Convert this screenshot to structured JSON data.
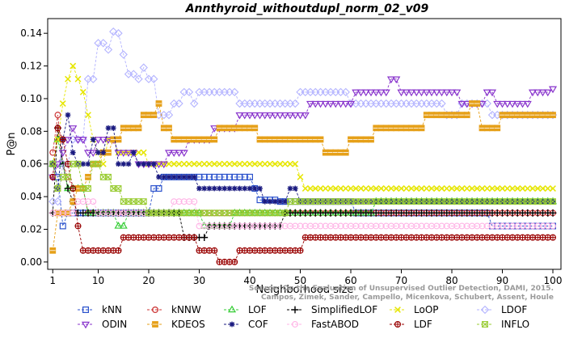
{
  "chart_data": {
    "type": "line",
    "title": "Annthyroid_withoutdupl_norm_02_v09",
    "xlabel": "Neighborhood size",
    "ylabel": "P@n",
    "xlim": [
      1,
      100
    ],
    "ylim": [
      0,
      0.15
    ],
    "xticks": [
      1,
      10,
      20,
      30,
      40,
      50,
      60,
      70,
      80,
      90,
      100
    ],
    "yticks": [
      0.0,
      0.02,
      0.04,
      0.06,
      0.08,
      0.1,
      0.12,
      0.14
    ],
    "ytick_labels": [
      "0.00",
      "0.02",
      "0.04",
      "0.06",
      "0.08",
      "0.10",
      "0.12",
      "0.14"
    ],
    "grid": false,
    "legend_position": "bottom",
    "watermark": [
      "Source: On the Evaluation of Unsupervised Outlier Detection, DAMI, 2015.",
      "Campos, Zimek, Sander, Campello, Micenkova, Schubert, Assent, Houle"
    ],
    "series": [
      {
        "name": "kNN",
        "color": "#2b52cc",
        "marker": "square",
        "points": [
          [
            1,
            0.06
          ],
          [
            2,
            0.052
          ],
          [
            3,
            0.022
          ],
          [
            4,
            0.03
          ],
          [
            7,
            0.03
          ],
          [
            10,
            0.03
          ],
          [
            20,
            0.03
          ],
          [
            21,
            0.045
          ],
          [
            22,
            0.045
          ],
          [
            23,
            0.052
          ],
          [
            40,
            0.052
          ],
          [
            41,
            0.045
          ],
          [
            42,
            0.038
          ],
          [
            44,
            0.038
          ],
          [
            46,
            0.037
          ],
          [
            60,
            0.037
          ],
          [
            61,
            0.03
          ],
          [
            87,
            0.03
          ],
          [
            88,
            0.022
          ],
          [
            100,
            0.022
          ]
        ]
      },
      {
        "name": "kNNW",
        "color": "#cc3333",
        "marker": "circle",
        "points": [
          [
            1,
            0.067
          ],
          [
            2,
            0.09
          ],
          [
            3,
            0.06
          ],
          [
            4,
            0.052
          ],
          [
            5,
            0.045
          ],
          [
            7,
            0.045
          ],
          [
            8,
            0.03
          ],
          [
            100,
            0.03
          ]
        ]
      },
      {
        "name": "LOF",
        "color": "#33cc33",
        "marker": "triangle-up",
        "points": [
          [
            1,
            0.06
          ],
          [
            2,
            0.075
          ],
          [
            3,
            0.06
          ],
          [
            4,
            0.045
          ],
          [
            8,
            0.03
          ],
          [
            12,
            0.03
          ],
          [
            14,
            0.022
          ],
          [
            16,
            0.03
          ],
          [
            30,
            0.03
          ],
          [
            31,
            0.022
          ],
          [
            36,
            0.022
          ],
          [
            37,
            0.03
          ],
          [
            64,
            0.03
          ],
          [
            65,
            0.037
          ],
          [
            100,
            0.037
          ]
        ]
      },
      {
        "name": "SimplifiedLOF",
        "color": "#000000",
        "marker": "plus",
        "points": [
          [
            1,
            0.03
          ],
          [
            2,
            0.082
          ],
          [
            3,
            0.06
          ],
          [
            4,
            0.045
          ],
          [
            5,
            0.037
          ],
          [
            6,
            0.03
          ],
          [
            26,
            0.03
          ],
          [
            27,
            0.015
          ],
          [
            31,
            0.015
          ],
          [
            32,
            0.022
          ],
          [
            46,
            0.022
          ],
          [
            47,
            0.03
          ],
          [
            100,
            0.03
          ]
        ]
      },
      {
        "name": "LoOP",
        "color": "#e6e600",
        "marker": "x",
        "points": [
          [
            1,
            0.06
          ],
          [
            2,
            0.075
          ],
          [
            3,
            0.097
          ],
          [
            4,
            0.112
          ],
          [
            5,
            0.12
          ],
          [
            6,
            0.112
          ],
          [
            7,
            0.104
          ],
          [
            8,
            0.09
          ],
          [
            9,
            0.075
          ],
          [
            10,
            0.067
          ],
          [
            11,
            0.06
          ],
          [
            12,
            0.075
          ],
          [
            14,
            0.067
          ],
          [
            18,
            0.067
          ],
          [
            20,
            0.06
          ],
          [
            45,
            0.06
          ],
          [
            46,
            0.06
          ],
          [
            50,
            0.052
          ],
          [
            51,
            0.045
          ],
          [
            100,
            0.045
          ]
        ]
      },
      {
        "name": "LDOF",
        "color": "#b3b3ff",
        "marker": "diamond",
        "points": [
          [
            1,
            0.037
          ],
          [
            3,
            0.06
          ],
          [
            5,
            0.075
          ],
          [
            8,
            0.112
          ],
          [
            10,
            0.134
          ],
          [
            12,
            0.13
          ],
          [
            13,
            0.141
          ],
          [
            14,
            0.14
          ],
          [
            15,
            0.127
          ],
          [
            16,
            0.115
          ],
          [
            18,
            0.112
          ],
          [
            19,
            0.119
          ],
          [
            20,
            0.112
          ],
          [
            22,
            0.09
          ],
          [
            25,
            0.097
          ],
          [
            27,
            0.104
          ],
          [
            29,
            0.097
          ],
          [
            30,
            0.104
          ],
          [
            35,
            0.104
          ],
          [
            38,
            0.097
          ],
          [
            45,
            0.097
          ],
          [
            50,
            0.104
          ],
          [
            55,
            0.104
          ],
          [
            60,
            0.097
          ],
          [
            65,
            0.097
          ],
          [
            70,
            0.097
          ],
          [
            75,
            0.097
          ],
          [
            79,
            0.09
          ],
          [
            82,
            0.097
          ],
          [
            86,
            0.097
          ],
          [
            88,
            0.09
          ],
          [
            100,
            0.09
          ]
        ]
      },
      {
        "name": "ODIN",
        "color": "#8833cc",
        "marker": "triangle-down",
        "points": [
          [
            1,
            0.052
          ],
          [
            2,
            0.06
          ],
          [
            3,
            0.067
          ],
          [
            4,
            0.075
          ],
          [
            5,
            0.082
          ],
          [
            6,
            0.075
          ],
          [
            8,
            0.067
          ],
          [
            10,
            0.075
          ],
          [
            13,
            0.075
          ],
          [
            14,
            0.067
          ],
          [
            18,
            0.06
          ],
          [
            20,
            0.06
          ],
          [
            24,
            0.067
          ],
          [
            28,
            0.075
          ],
          [
            33,
            0.082
          ],
          [
            38,
            0.09
          ],
          [
            44,
            0.09
          ],
          [
            48,
            0.09
          ],
          [
            52,
            0.097
          ],
          [
            58,
            0.097
          ],
          [
            61,
            0.104
          ],
          [
            63,
            0.104
          ],
          [
            66,
            0.104
          ],
          [
            68,
            0.112
          ],
          [
            70,
            0.104
          ],
          [
            76,
            0.104
          ],
          [
            80,
            0.104
          ],
          [
            82,
            0.097
          ],
          [
            87,
            0.104
          ],
          [
            89,
            0.097
          ],
          [
            92,
            0.097
          ],
          [
            96,
            0.104
          ],
          [
            100,
            0.106
          ]
        ]
      },
      {
        "name": "KDEOS",
        "color": "#e6a019",
        "marker": "square-filled",
        "points": [
          [
            1,
            0.007
          ],
          [
            2,
            0.03
          ],
          [
            3,
            0.03
          ],
          [
            5,
            0.037
          ],
          [
            6,
            0.045
          ],
          [
            8,
            0.052
          ],
          [
            9,
            0.06
          ],
          [
            11,
            0.067
          ],
          [
            13,
            0.075
          ],
          [
            15,
            0.082
          ],
          [
            19,
            0.09
          ],
          [
            22,
            0.097
          ],
          [
            23,
            0.082
          ],
          [
            25,
            0.075
          ],
          [
            30,
            0.075
          ],
          [
            34,
            0.082
          ],
          [
            38,
            0.082
          ],
          [
            42,
            0.075
          ],
          [
            50,
            0.075
          ],
          [
            55,
            0.067
          ],
          [
            60,
            0.075
          ],
          [
            65,
            0.082
          ],
          [
            70,
            0.082
          ],
          [
            75,
            0.09
          ],
          [
            80,
            0.09
          ],
          [
            84,
            0.097
          ],
          [
            86,
            0.082
          ],
          [
            90,
            0.09
          ],
          [
            100,
            0.09
          ]
        ]
      },
      {
        "name": "COF",
        "color": "#1a1a80",
        "marker": "star",
        "points": [
          [
            1,
            0.06
          ],
          [
            2,
            0.045
          ],
          [
            3,
            0.075
          ],
          [
            4,
            0.09
          ],
          [
            5,
            0.067
          ],
          [
            6,
            0.06
          ],
          [
            8,
            0.06
          ],
          [
            9,
            0.075
          ],
          [
            10,
            0.067
          ],
          [
            12,
            0.082
          ],
          [
            14,
            0.06
          ],
          [
            17,
            0.067
          ],
          [
            18,
            0.06
          ],
          [
            20,
            0.06
          ],
          [
            22,
            0.052
          ],
          [
            28,
            0.052
          ],
          [
            30,
            0.045
          ],
          [
            40,
            0.045
          ],
          [
            43,
            0.037
          ],
          [
            48,
            0.045
          ],
          [
            50,
            0.037
          ],
          [
            60,
            0.037
          ],
          [
            65,
            0.037
          ],
          [
            89,
            0.037
          ],
          [
            100,
            0.037
          ]
        ]
      },
      {
        "name": "FastABOD",
        "color": "#ffb3e6",
        "marker": "circle-open",
        "points": [
          [
            1,
            0.03
          ],
          [
            4,
            0.03
          ],
          [
            6,
            0.037
          ],
          [
            10,
            0.03
          ],
          [
            20,
            0.03
          ],
          [
            25,
            0.037
          ],
          [
            30,
            0.022
          ],
          [
            40,
            0.022
          ],
          [
            50,
            0.022
          ],
          [
            60,
            0.022
          ],
          [
            70,
            0.022
          ],
          [
            80,
            0.022
          ],
          [
            90,
            0.022
          ],
          [
            100,
            0.022
          ]
        ]
      },
      {
        "name": "LDF",
        "color": "#990000",
        "marker": "circle-dot",
        "points": [
          [
            1,
            0.052
          ],
          [
            2,
            0.082
          ],
          [
            3,
            0.075
          ],
          [
            4,
            0.06
          ],
          [
            5,
            0.045
          ],
          [
            6,
            0.022
          ],
          [
            7,
            0.007
          ],
          [
            9,
            0.007
          ],
          [
            13,
            0.007
          ],
          [
            15,
            0.015
          ],
          [
            28,
            0.015
          ],
          [
            30,
            0.007
          ],
          [
            32,
            0.007
          ],
          [
            34,
            0.0
          ],
          [
            36,
            0.0
          ],
          [
            38,
            0.007
          ],
          [
            50,
            0.007
          ],
          [
            51,
            0.015
          ],
          [
            100,
            0.015
          ]
        ]
      },
      {
        "name": "INFLO",
        "color": "#99cc33",
        "marker": "hash",
        "points": [
          [
            1,
            0.06
          ],
          [
            2,
            0.045
          ],
          [
            3,
            0.052
          ],
          [
            5,
            0.06
          ],
          [
            7,
            0.045
          ],
          [
            9,
            0.06
          ],
          [
            11,
            0.052
          ],
          [
            13,
            0.045
          ],
          [
            15,
            0.037
          ],
          [
            20,
            0.03
          ],
          [
            40,
            0.03
          ],
          [
            47,
            0.03
          ],
          [
            48,
            0.037
          ],
          [
            65,
            0.037
          ],
          [
            89,
            0.037
          ],
          [
            90,
            0.037
          ],
          [
            100,
            0.037
          ]
        ]
      }
    ]
  }
}
